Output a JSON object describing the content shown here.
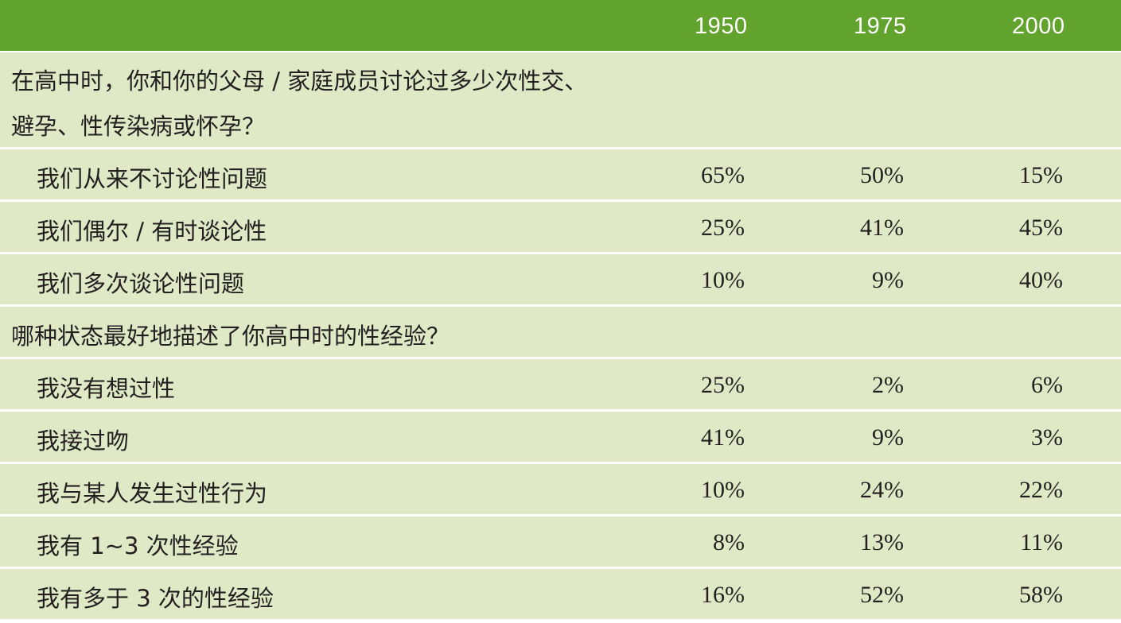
{
  "colors": {
    "header_bg": "#62a32d",
    "row_bg": "#dfe9c6",
    "separator": "#ffffff",
    "text": "#231f20"
  },
  "header": {
    "col_1950": "1950",
    "col_1975": "1975",
    "col_2000": "2000"
  },
  "section1": {
    "question_line1": "在高中时，你和你的父母 / 家庭成员讨论过多少次性交、",
    "question_line2": "避孕、性传染病或怀孕？",
    "rows": [
      {
        "label": "我们从来不讨论性问题",
        "v1950": "65%",
        "v1975": "50%",
        "v2000": "15%"
      },
      {
        "label": "我们偶尔 / 有时谈论性",
        "v1950": "25%",
        "v1975": "41%",
        "v2000": "45%"
      },
      {
        "label": "我们多次谈论性问题",
        "v1950": "10%",
        "v1975": "9%",
        "v2000": "40%"
      }
    ]
  },
  "section2": {
    "question": "哪种状态最好地描述了你高中时的性经验？",
    "rows": [
      {
        "label": "我没有想过性",
        "v1950": "25%",
        "v1975": "2%",
        "v2000": "6%"
      },
      {
        "label": "我接过吻",
        "v1950": "41%",
        "v1975": "9%",
        "v2000": "3%"
      },
      {
        "label": "我与某人发生过性行为",
        "v1950": "10%",
        "v1975": "24%",
        "v2000": "22%"
      },
      {
        "label": "我有 1~3 次性经验",
        "v1950": "8%",
        "v1975": "13%",
        "v2000": "11%"
      },
      {
        "label": "我有多于 3 次的性经验",
        "v1950": "16%",
        "v1975": "52%",
        "v2000": "58%"
      }
    ]
  }
}
